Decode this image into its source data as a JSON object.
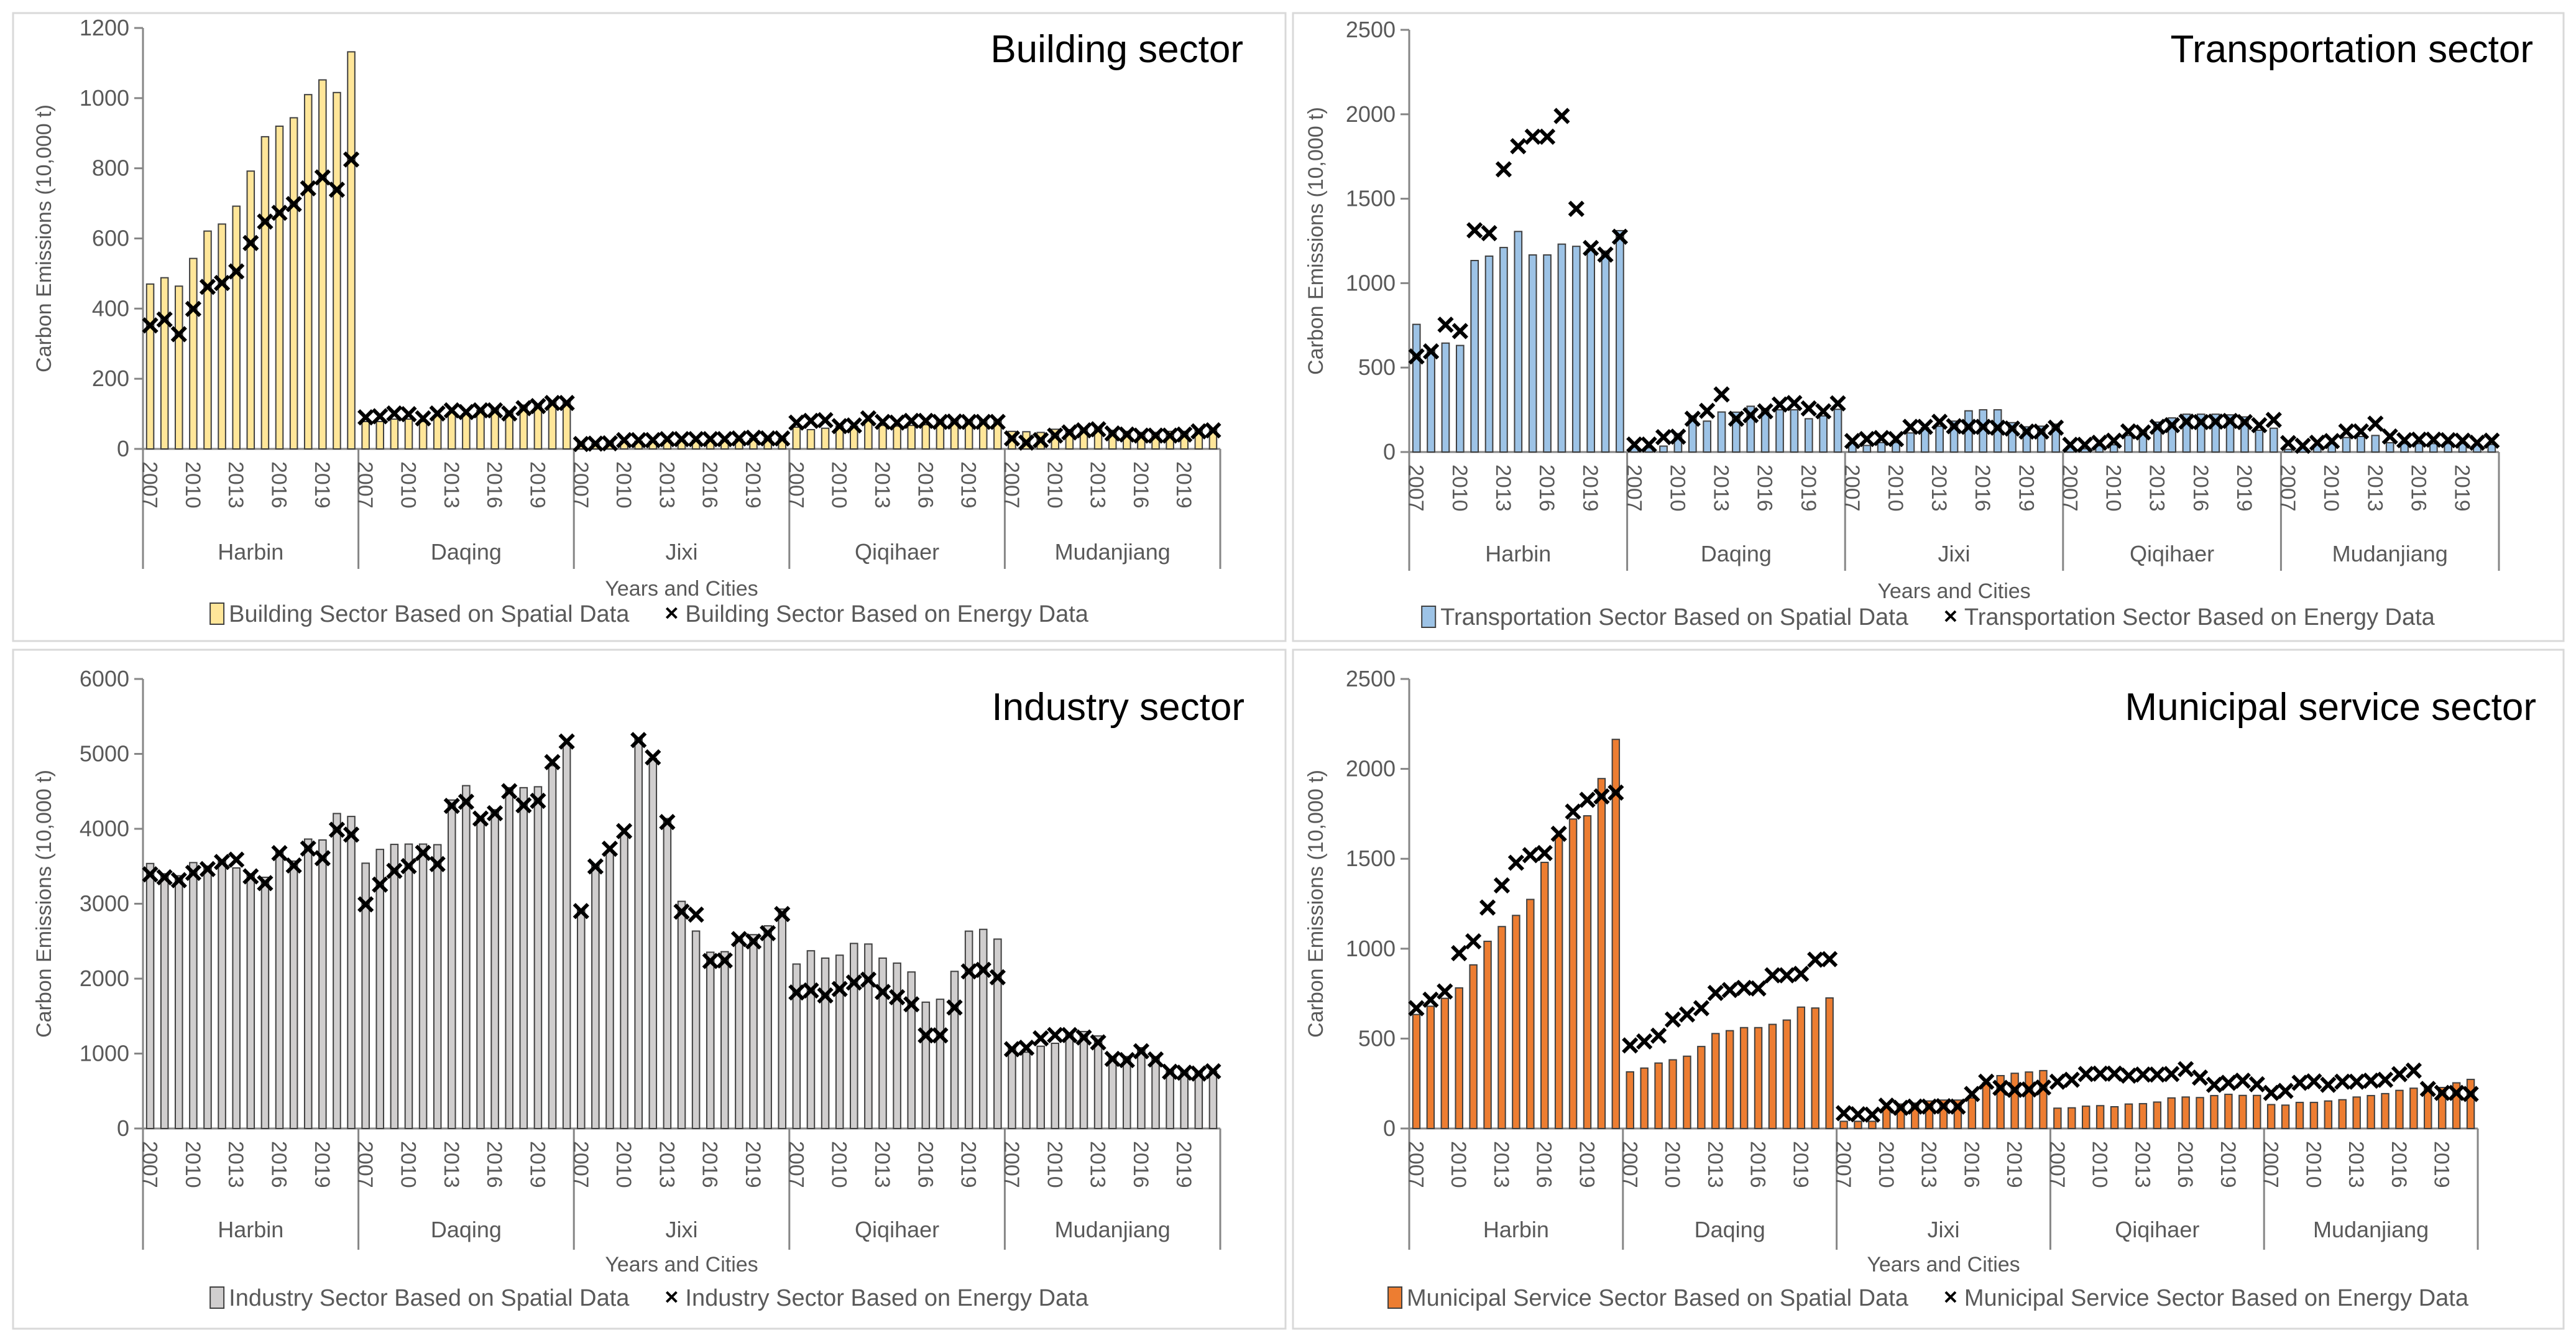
{
  "chart_data": [
    {
      "type": "bar",
      "title": "Building sector",
      "xlabel": "Years and Cities",
      "ylabel": "Carbon Emissions  (10,000 t)",
      "ylim": [
        0,
        1200
      ],
      "yticks": [
        "0",
        "200",
        "400",
        "600",
        "800",
        "1000",
        "1200"
      ],
      "years": [
        2007,
        2008,
        2009,
        2010,
        2011,
        2012,
        2013,
        2014,
        2015,
        2016,
        2017,
        2018,
        2019,
        2020,
        2021
      ],
      "year_tick_labels": [
        "2007",
        "2010",
        "2013",
        "2016",
        "2019"
      ],
      "cities": [
        "Harbin",
        "Daqing",
        "Jixi",
        "Qiqihaer",
        "Mudanjiang"
      ],
      "grid": false,
      "legend_position": "bottom",
      "series": [
        {
          "name": "Building Sector Based on Spatial Data",
          "kind": "bar",
          "color": "#FFE699",
          "values": [
            [
              470,
              488,
              464,
              543,
              621,
              641,
              692,
              792,
              890,
              920,
              944,
              1010,
              1052,
              1016,
              1132
            ],
            [
              78,
              78,
              85,
              85,
              78,
              95,
              103,
              100,
              110,
              112,
              108,
              125,
              128,
              135,
              135
            ],
            [
              15,
              15,
              17,
              22,
              22,
              22,
              25,
              25,
              25,
              25,
              25,
              28,
              30,
              30,
              30
            ],
            [
              62,
              55,
              59,
              65,
              65,
              80,
              67,
              65,
              67,
              69,
              81,
              81,
              81,
              81,
              84
            ],
            [
              50,
              49,
              47,
              56,
              55,
              59,
              61,
              53,
              50,
              47,
              47,
              50,
              50,
              56,
              59
            ]
          ]
        },
        {
          "name": "Building Sector Based on Energy Data",
          "kind": "marker",
          "marker": "x",
          "color": "#000000",
          "values": [
            [
              352,
              369,
              327,
              399,
              462,
              473,
              506,
              587,
              648,
              673,
              698,
              743,
              774,
              739,
              825
            ],
            [
              90,
              93,
              101,
              99,
              87,
              101,
              110,
              105,
              110,
              110,
              101,
              116,
              122,
              131,
              131
            ],
            [
              14,
              15,
              16,
              25,
              25,
              25,
              28,
              28,
              28,
              28,
              28,
              30,
              32,
              30,
              30
            ],
            [
              75,
              80,
              82,
              65,
              67,
              87,
              77,
              75,
              80,
              80,
              77,
              78,
              77,
              77,
              77
            ],
            [
              30,
              18,
              25,
              38,
              47,
              53,
              56,
              44,
              41,
              38,
              38,
              38,
              41,
              50,
              53
            ]
          ]
        }
      ]
    },
    {
      "type": "bar",
      "title": "Transportation sector",
      "xlabel": "Years and Cities",
      "ylabel": "Carbon Emissions  (10,000 t)",
      "ylim": [
        0,
        2500
      ],
      "yticks": [
        "0",
        "500",
        "1000",
        "1500",
        "2000",
        "2500"
      ],
      "years": [
        2007,
        2008,
        2009,
        2010,
        2011,
        2012,
        2013,
        2014,
        2015,
        2016,
        2017,
        2018,
        2019,
        2020,
        2021
      ],
      "year_tick_labels": [
        "2007",
        "2010",
        "2013",
        "2016",
        "2019"
      ],
      "cities": [
        "Harbin",
        "Daqing",
        "Jixi",
        "Qiqihaer",
        "Mudanjiang"
      ],
      "grid": false,
      "legend_position": "bottom",
      "series": [
        {
          "name": "Transportation Sector Based on Spatial Data",
          "kind": "bar",
          "color": "#9DC3E6",
          "values": [
            [
              756,
              601,
              645,
              631,
              1134,
              1160,
              1211,
              1306,
              1167,
              1167,
              1231,
              1218,
              1202,
              1190,
              1311
            ],
            [
              30,
              25,
              35,
              109,
              214,
              183,
              237,
              236,
              271,
              258,
              250,
              250,
              197,
              214,
              253
            ],
            [
              56,
              39,
              56,
              56,
              113,
              144,
              153,
              183,
              244,
              250,
              250,
              174,
              149,
              153,
              165
            ],
            [
              30,
              20,
              37,
              43,
              98,
              122,
              177,
              202,
              224,
              224,
              224,
              220,
              208,
              129,
              141
            ],
            [
              16,
              24,
              43,
              49,
              86,
              92,
              98,
              55,
              50,
              50,
              50,
              50,
              50,
              45,
              45
            ]
          ]
        },
        {
          "name": "Transportation Sector Based on Energy Data",
          "kind": "marker",
          "marker": "x",
          "color": "#000000",
          "values": [
            [
              566,
              596,
              754,
              716,
              1313,
              1296,
              1674,
              1811,
              1867,
              1867,
              1990,
              1440,
              1208,
              1169,
              1275
            ],
            [
              44,
              44,
              88,
              91,
              197,
              244,
              341,
              197,
              218,
              241,
              281,
              290,
              258,
              241,
              288
            ],
            [
              65,
              77,
              83,
              77,
              149,
              149,
              179,
              153,
              149,
              149,
              144,
              139,
              121,
              121,
              144
            ],
            [
              43,
              43,
              55,
              67,
              122,
              116,
              149,
              159,
              180,
              177,
              180,
              184,
              177,
              159,
              190
            ],
            [
              53,
              37,
              55,
              65,
              122,
              122,
              168,
              92,
              70,
              73,
              73,
              70,
              67,
              55,
              67
            ]
          ]
        }
      ]
    },
    {
      "type": "bar",
      "title": "Industry sector",
      "xlabel": "Years and Cities",
      "ylabel": "Carbon Emissions  (10,000 t)",
      "ylim": [
        0,
        6000
      ],
      "yticks": [
        "0",
        "1000",
        "2000",
        "3000",
        "4000",
        "5000",
        "6000"
      ],
      "years": [
        2007,
        2008,
        2009,
        2010,
        2011,
        2012,
        2013,
        2014,
        2015,
        2016,
        2017,
        2018,
        2019,
        2020,
        2021
      ],
      "year_tick_labels": [
        "2007",
        "2010",
        "2013",
        "2016",
        "2019"
      ],
      "cities": [
        "Harbin",
        "Daqing",
        "Jixi",
        "Qiqihaer",
        "Mudanjiang"
      ],
      "grid": false,
      "legend_position": "bottom",
      "series": [
        {
          "name": "Industry Sector Based on Spatial Data",
          "kind": "bar",
          "color": "#D0CECE",
          "values": [
            [
              3537,
              3400,
              3373,
              3549,
              3502,
              3588,
              3478,
              3400,
              3353,
              3686,
              3569,
              3863,
              3851,
              4204,
              4165
            ],
            [
              3541,
              3725,
              3792,
              3796,
              3796,
              3788,
              4384,
              4576,
              4137,
              4255,
              4549,
              4549,
              4561,
              4843,
              5137
            ],
            [
              2922,
              3510,
              3706,
              3941,
              5216,
              4941,
              4137,
              3032,
              2635,
              2353,
              2360,
              2528,
              2587,
              2705,
              2928
            ],
            [
              2195,
              2372,
              2274,
              2313,
              2470,
              2462,
              2274,
              2207,
              2089,
              1686,
              1725,
              2097,
              2634,
              2658,
              2528
            ],
            [
              1078,
              1019,
              1098,
              1137,
              1274,
              1294,
              1235,
              960,
              960,
              1078,
              960,
              764,
              764,
              764,
              764
            ]
          ]
        },
        {
          "name": "Industry Sector Based on Energy Data",
          "kind": "marker",
          "marker": "x",
          "color": "#000000",
          "values": [
            [
              3392,
              3353,
              3314,
              3412,
              3463,
              3557,
              3588,
              3365,
              3275,
              3675,
              3510,
              3737,
              3608,
              3988,
              3922
            ],
            [
              2992,
              3255,
              3439,
              3502,
              3678,
              3529,
              4306,
              4361,
              4137,
              4208,
              4502,
              4314,
              4373,
              4890,
              5165
            ],
            [
              2902,
              3498,
              3733,
              3969,
              5185,
              4953,
              4090,
              2894,
              2855,
              2235,
              2243,
              2528,
              2497,
              2607,
              2862
            ],
            [
              1815,
              1842,
              1776,
              1862,
              1948,
              1987,
              1823,
              1752,
              1658,
              1243,
              1243,
              1615,
              2097,
              2117,
              2019
            ],
            [
              1058,
              1078,
              1203,
              1247,
              1247,
              1215,
              1149,
              929,
              913,
              1031,
              921,
              757,
              745,
              733,
              764
            ]
          ]
        }
      ]
    },
    {
      "type": "bar",
      "title": "Municipal service sector",
      "xlabel": "Years and Cities",
      "ylabel": "Carbon Emissions  (10,000 t)",
      "ylim": [
        0,
        2500
      ],
      "yticks": [
        "0",
        "500",
        "1000",
        "1500",
        "2000",
        "2500"
      ],
      "years": [
        2007,
        2008,
        2009,
        2010,
        2011,
        2012,
        2013,
        2014,
        2015,
        2016,
        2017,
        2018,
        2019,
        2020,
        2021
      ],
      "year_tick_labels": [
        "2007",
        "2010",
        "2013",
        "2016",
        "2019"
      ],
      "cities": [
        "Harbin",
        "Daqing",
        "Jixi",
        "Qiqihaer",
        "Mudanjiang"
      ],
      "grid": false,
      "legend_position": "bottom",
      "series": [
        {
          "name": "Municipal Service Sector Based on Spatial Data",
          "kind": "bar",
          "color": "#ED7D31",
          "values": [
            [
              634,
              680,
              724,
              782,
              910,
              1041,
              1123,
              1185,
              1274,
              1480,
              1628,
              1721,
              1739,
              1946,
              2164
            ],
            [
              315,
              336,
              364,
              382,
              402,
              456,
              528,
              544,
              561,
              561,
              579,
              603,
              675,
              670,
              726
            ],
            [
              40,
              40,
              40,
              119,
              136,
              141,
              153,
              158,
              158,
              170,
              254,
              294,
              307,
              314,
              322
            ],
            [
              113,
              115,
              124,
              127,
              121,
              136,
              138,
              147,
              170,
              175,
              172,
              183,
              190,
              184,
              184
            ],
            [
              133,
              130,
              145,
              145,
              153,
              160,
              175,
              183,
              194,
              212,
              224,
              228,
              228,
              254,
              273
            ]
          ]
        },
        {
          "name": "Municipal Service Sector Based on Energy Data",
          "kind": "marker",
          "marker": "x",
          "color": "#000000",
          "values": [
            [
              669,
              716,
              762,
              975,
              1041,
              1229,
              1352,
              1478,
              1520,
              1532,
              1639,
              1762,
              1828,
              1847,
              1868
            ],
            [
              462,
              484,
              516,
              606,
              634,
              669,
              754,
              770,
              782,
              779,
              852,
              852,
              860,
              939,
              942
            ],
            [
              85,
              79,
              77,
              127,
              115,
              122,
              122,
              124,
              122,
              192,
              260,
              226,
              215,
              217,
              228
            ],
            [
              260,
              271,
              303,
              305,
              305,
              294,
              300,
              300,
              303,
              330,
              283,
              243,
              254,
              266,
              246
            ],
            [
              198,
              209,
              254,
              262,
              243,
              260,
              260,
              266,
              271,
              302,
              322,
              220,
              198,
              198,
              192
            ]
          ]
        }
      ]
    }
  ]
}
